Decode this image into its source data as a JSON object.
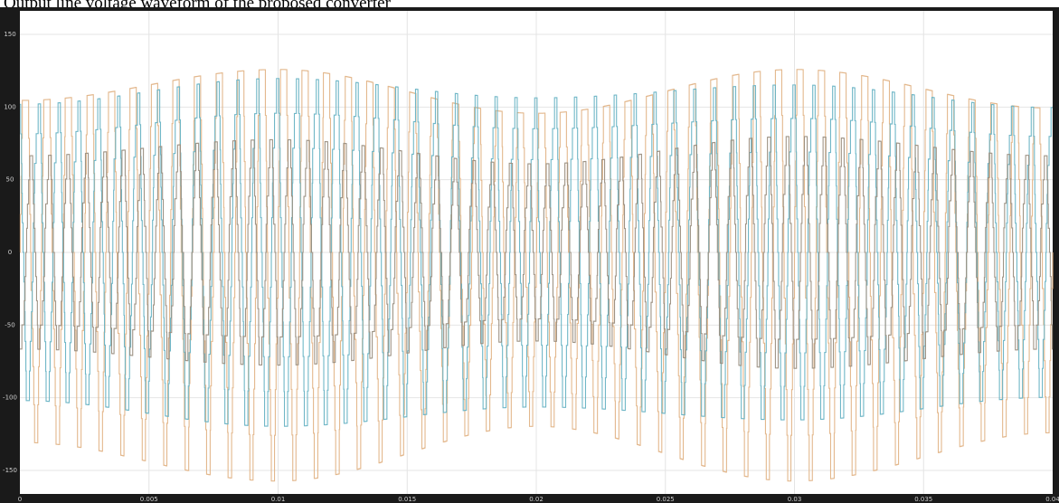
{
  "caption": "Output line voltage waveform of the proposed converter",
  "chart_data": {
    "type": "line",
    "title": "",
    "xlabel": "",
    "ylabel": "",
    "xlim": [
      0,
      0.04
    ],
    "ylim": [
      -150,
      150
    ],
    "x_ticks": [
      "0",
      "0.005",
      "0.01",
      "0.015",
      "0.02",
      "0.025",
      "0.03",
      "0.035",
      "0.04"
    ],
    "y_ticks": [
      "150",
      "100",
      "50",
      "0",
      "-50",
      "-100",
      "-150"
    ],
    "grid": true,
    "legend": "none",
    "series": [
      {
        "color": "#e2b487",
        "envelope_peaks": [
          118,
          142,
          108,
          142,
          112
        ],
        "carrier_cycles": 48,
        "step_levels": 5
      },
      {
        "color": "#68b3c4",
        "envelope_peaks": [
          92,
          108,
          96,
          104,
          90
        ],
        "carrier_cycles": 52,
        "step_levels": 5
      },
      {
        "color": "#9a8e80",
        "envelope_peaks": [
          60,
          70,
          55,
          72,
          60
        ],
        "carrier_cycles": 56,
        "step_levels": 4
      }
    ]
  }
}
